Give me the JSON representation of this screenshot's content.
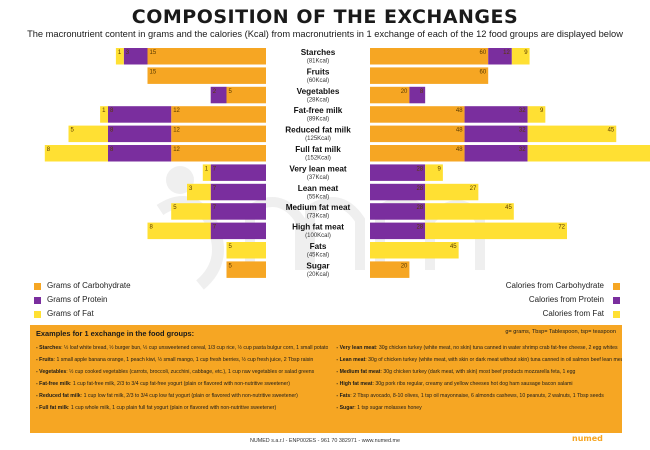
{
  "page": {
    "title": "COMPOSITION OF THE EXCHANGES",
    "subtitle": "The macronutrient content in grams and the calories (Kcal) from macronutrients in 1 exchange of each of the 12 food groups are displayed below"
  },
  "colors": {
    "carb": "#f6a623",
    "protein": "#7a2e9e",
    "fat": "#ffe033"
  },
  "legend_left": {
    "carb": "Grams of Carbohydrate",
    "protein": "Grams of Protein",
    "fat": "Grams of Fat"
  },
  "legend_right": {
    "carb": "Calories from Carbohydrate",
    "protein": "Calories from Protein",
    "fat": "Calories from Fat"
  },
  "chart_data": {
    "type": "bar",
    "orientation": "horizontal-butterfly",
    "left_panel": "grams (carbohydrate, protein, fat)",
    "right_panel": "calories from carbohydrate, protein, fat",
    "categories": [
      {
        "name": "Starches",
        "kcal": "(81Kcal)",
        "grams": {
          "carb": 15,
          "protein": 3,
          "fat": 1
        },
        "calories": {
          "carb": 60,
          "protein": 12,
          "fat": 9
        }
      },
      {
        "name": "Fruits",
        "kcal": "(60Kcal)",
        "grams": {
          "carb": 15,
          "protein": 0,
          "fat": 0
        },
        "calories": {
          "carb": 60,
          "protein": 0,
          "fat": 0
        }
      },
      {
        "name": "Vegetables",
        "kcal": "(28Kcal)",
        "grams": {
          "carb": 5,
          "protein": 2,
          "fat": 0
        },
        "calories": {
          "carb": 20,
          "protein": 8,
          "fat": 0
        }
      },
      {
        "name": "Fat-free milk",
        "kcal": "(89Kcal)",
        "grams": {
          "carb": 12,
          "protein": 8,
          "fat": 1
        },
        "calories": {
          "carb": 48,
          "protein": 32,
          "fat": 9
        }
      },
      {
        "name": "Reduced fat milk",
        "kcal": "(125Kcal)",
        "grams": {
          "carb": 12,
          "protein": 8,
          "fat": 5
        },
        "calories": {
          "carb": 48,
          "protein": 32,
          "fat": 45
        }
      },
      {
        "name": "Full fat milk",
        "kcal": "(152Kcal)",
        "grams": {
          "carb": 12,
          "protein": 8,
          "fat": 8
        },
        "calories": {
          "carb": 48,
          "protein": 32,
          "fat": 72
        }
      },
      {
        "name": "Very lean meat",
        "kcal": "(37Kcal)",
        "grams": {
          "carb": 0,
          "protein": 7,
          "fat": 1
        },
        "calories": {
          "carb": 0,
          "protein": 28,
          "fat": 9
        }
      },
      {
        "name": "Lean meat",
        "kcal": "(55Kcal)",
        "grams": {
          "carb": 0,
          "protein": 7,
          "fat": 3
        },
        "calories": {
          "carb": 0,
          "protein": 28,
          "fat": 27
        }
      },
      {
        "name": "Medium fat meat",
        "kcal": "(73Kcal)",
        "grams": {
          "carb": 0,
          "protein": 7,
          "fat": 5
        },
        "calories": {
          "carb": 0,
          "protein": 28,
          "fat": 45
        }
      },
      {
        "name": "High fat meat",
        "kcal": "(100Kcal)",
        "grams": {
          "carb": 0,
          "protein": 7,
          "fat": 8
        },
        "calories": {
          "carb": 0,
          "protein": 28,
          "fat": 72
        }
      },
      {
        "name": "Fats",
        "kcal": "(45Kcal)",
        "grams": {
          "carb": 0,
          "protein": 0,
          "fat": 5
        },
        "calories": {
          "carb": 0,
          "protein": 0,
          "fat": 45
        }
      },
      {
        "name": "Sugar",
        "kcal": "(20Kcal)",
        "grams": {
          "carb": 5,
          "protein": 0,
          "fat": 0
        },
        "calories": {
          "carb": 20,
          "protein": 0,
          "fat": 0
        }
      }
    ]
  },
  "examples": {
    "heading": "Examples for 1 exchange in the food groups:",
    "units_note": "g= grams, Tbsp= Tablespoon, tsp= teaspoon",
    "left": [
      {
        "key": "- Starches",
        "text": ": ½ loaf white bread, ½ burger bun, ½ cup unsweetened cereal, 1/3 cup rice, ½ cup pasta bulgur corn, 1 small potato"
      },
      {
        "key": "- Fruits",
        "text": ": 1 small apple banana orange, 1 peach kiwi, ½ small mango, 1 cup fresh berries, ½ cup fresh juice, 2 Tbsp raisin"
      },
      {
        "key": "- Vegetables",
        "text": ": ½ cup cooked vegetables (carrots, broccoli, zucchini, cabbage, etc.), 1 cup raw vegetables or salad greens"
      },
      {
        "key": "- Fat-free milk",
        "text": ": 1 cup fat-free milk, 2/3 to 3/4 cup fat-free yogurt (plain or flavored with non-nutritive sweetener)"
      },
      {
        "key": "- Reduced fat milk",
        "text": ": 1 cup low fat milk, 2/3 to 3/4 cup low fat yogurt (plain or flavored with non-nutritive sweetener)"
      },
      {
        "key": "- Full fat milk",
        "text": ": 1 cup whole milk, 1 cup plain full fat yogurt (plain or flavored with non-nutritive sweetener)"
      }
    ],
    "right": [
      {
        "key": "- Very lean meat",
        "text": ": 30g chicken turkey (white meat, no skin) tuna canned in water shrimp crab fat-free cheese, 2 egg whites"
      },
      {
        "key": "- Lean meat",
        "text": ": 30g of chicken turkey (white meat, with skin or dark meat without skin) tuna canned in oil salmon beef lean meat"
      },
      {
        "key": "- Medium fat meat",
        "text": ": 30g chicken turkey (dark meat, with skin) most beef products mozzarella feta, 1 egg"
      },
      {
        "key": "- High fat meat",
        "text": ": 30g pork ribs regular, creamy and yellow cheeses hot dog ham sausage bacon salami"
      },
      {
        "key": "- Fats",
        "text": ": 2 Tbsp avocado, 8-10 olives, 1 tsp oil mayonnaise, 6 almonds cashews, 10 peanuts, 2 walnuts, 1 Tbsp seeds"
      },
      {
        "key": "- Sugar",
        "text": ": 1 tsp sugar molasses honey"
      }
    ]
  },
  "footer": {
    "text": "NUMED s.a.r.l - ENP002ES - 961 70 382971 - www.numed.me",
    "logo": "numed"
  }
}
